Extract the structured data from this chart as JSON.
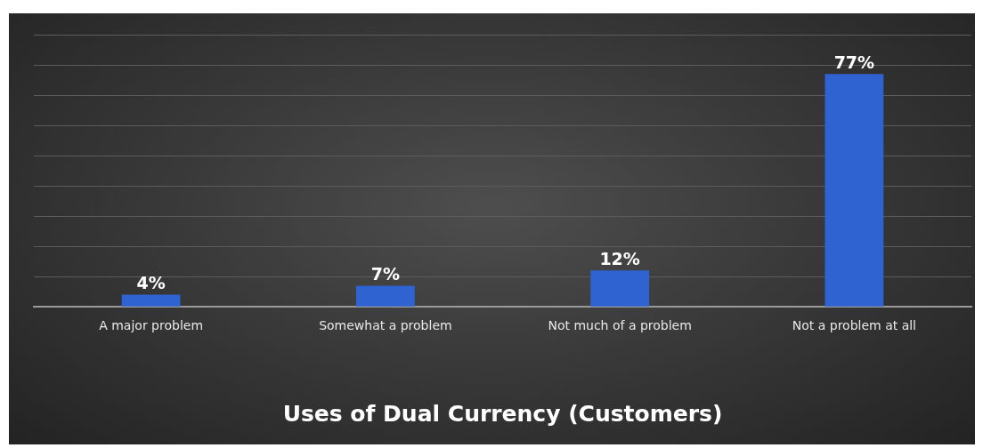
{
  "chart_data": {
    "type": "bar",
    "title": "Uses of Dual Currency (Customers)",
    "categories": [
      "A major problem",
      "Somewhat a problem",
      "Not much of a problem",
      "Not a problem at all"
    ],
    "values": [
      4,
      7,
      12,
      77
    ],
    "color": "#2e63d1",
    "value_labels": [
      "4%",
      "7%",
      "12%",
      "77%"
    ],
    "ylim": [
      0,
      90
    ],
    "yticks": [
      {
        "value": 0,
        "label": null
      },
      {
        "value": 10,
        "label": null
      },
      {
        "value": 20,
        "label": null
      },
      {
        "value": 30,
        "label": null
      },
      {
        "value": 40,
        "label": null
      },
      {
        "value": 50,
        "label": null
      },
      {
        "value": 60,
        "label": null
      },
      {
        "value": 70,
        "label": null
      },
      {
        "value": 80,
        "label": null
      },
      {
        "value": 90,
        "label": null
      }
    ],
    "grid": "y",
    "legend": false,
    "tick_labels": "x"
  }
}
